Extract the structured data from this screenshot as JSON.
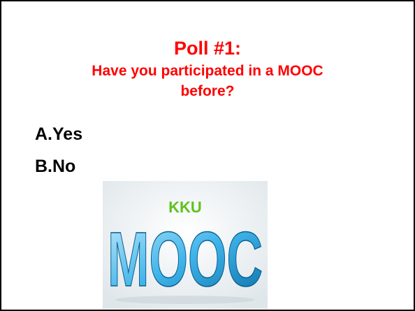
{
  "slide": {
    "title": "Poll #1:",
    "question_lines": [
      "Have you participated in a MOOC",
      "before?"
    ],
    "options": [
      "A.Yes",
      "B.No"
    ],
    "image": {
      "badge": "KKU",
      "word": "MOOC"
    }
  }
}
